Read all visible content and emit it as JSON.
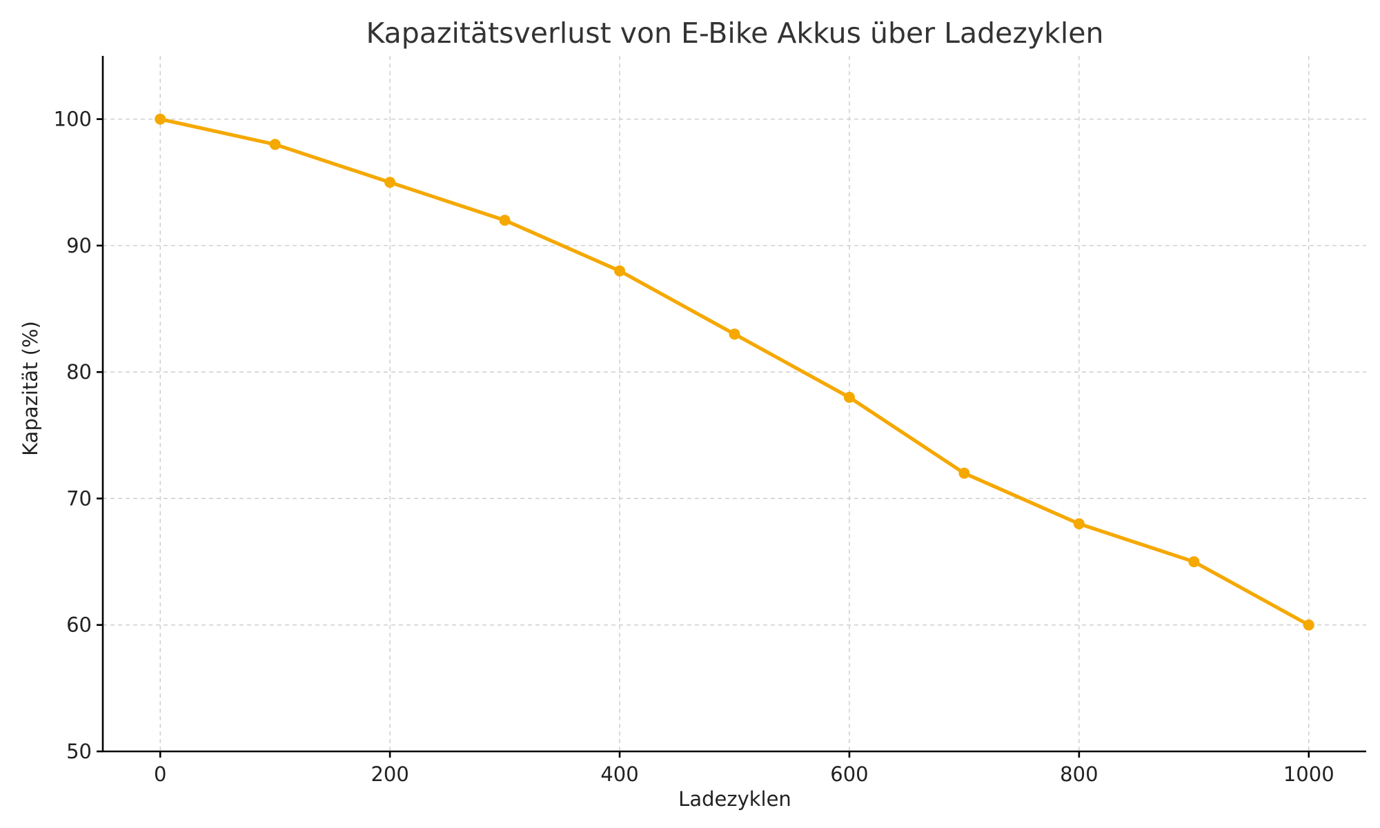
{
  "chart_data": {
    "type": "line",
    "title": "Kapazitätsverlust von E-Bike Akkus über Ladezyklen",
    "xlabel": "Ladezyklen",
    "ylabel": "Kapazität (%)",
    "x": [
      0,
      100,
      200,
      300,
      400,
      500,
      600,
      700,
      800,
      900,
      1000
    ],
    "series": [
      {
        "values": [
          100,
          98,
          95,
          92,
          88,
          83,
          78,
          72,
          68,
          65,
          60
        ]
      }
    ],
    "xlim": [
      -50,
      1050
    ],
    "ylim": [
      50,
      105
    ],
    "xticks": [
      0,
      200,
      400,
      600,
      800,
      1000
    ],
    "yticks": [
      50,
      60,
      70,
      80,
      90,
      100
    ],
    "xtick_labels": [
      "0",
      "200",
      "400",
      "600",
      "800",
      "1000"
    ],
    "ytick_labels": [
      "50",
      "60",
      "70",
      "80",
      "90",
      "100"
    ],
    "grid": true,
    "line_color": "#f5a800",
    "marker": "circle"
  }
}
